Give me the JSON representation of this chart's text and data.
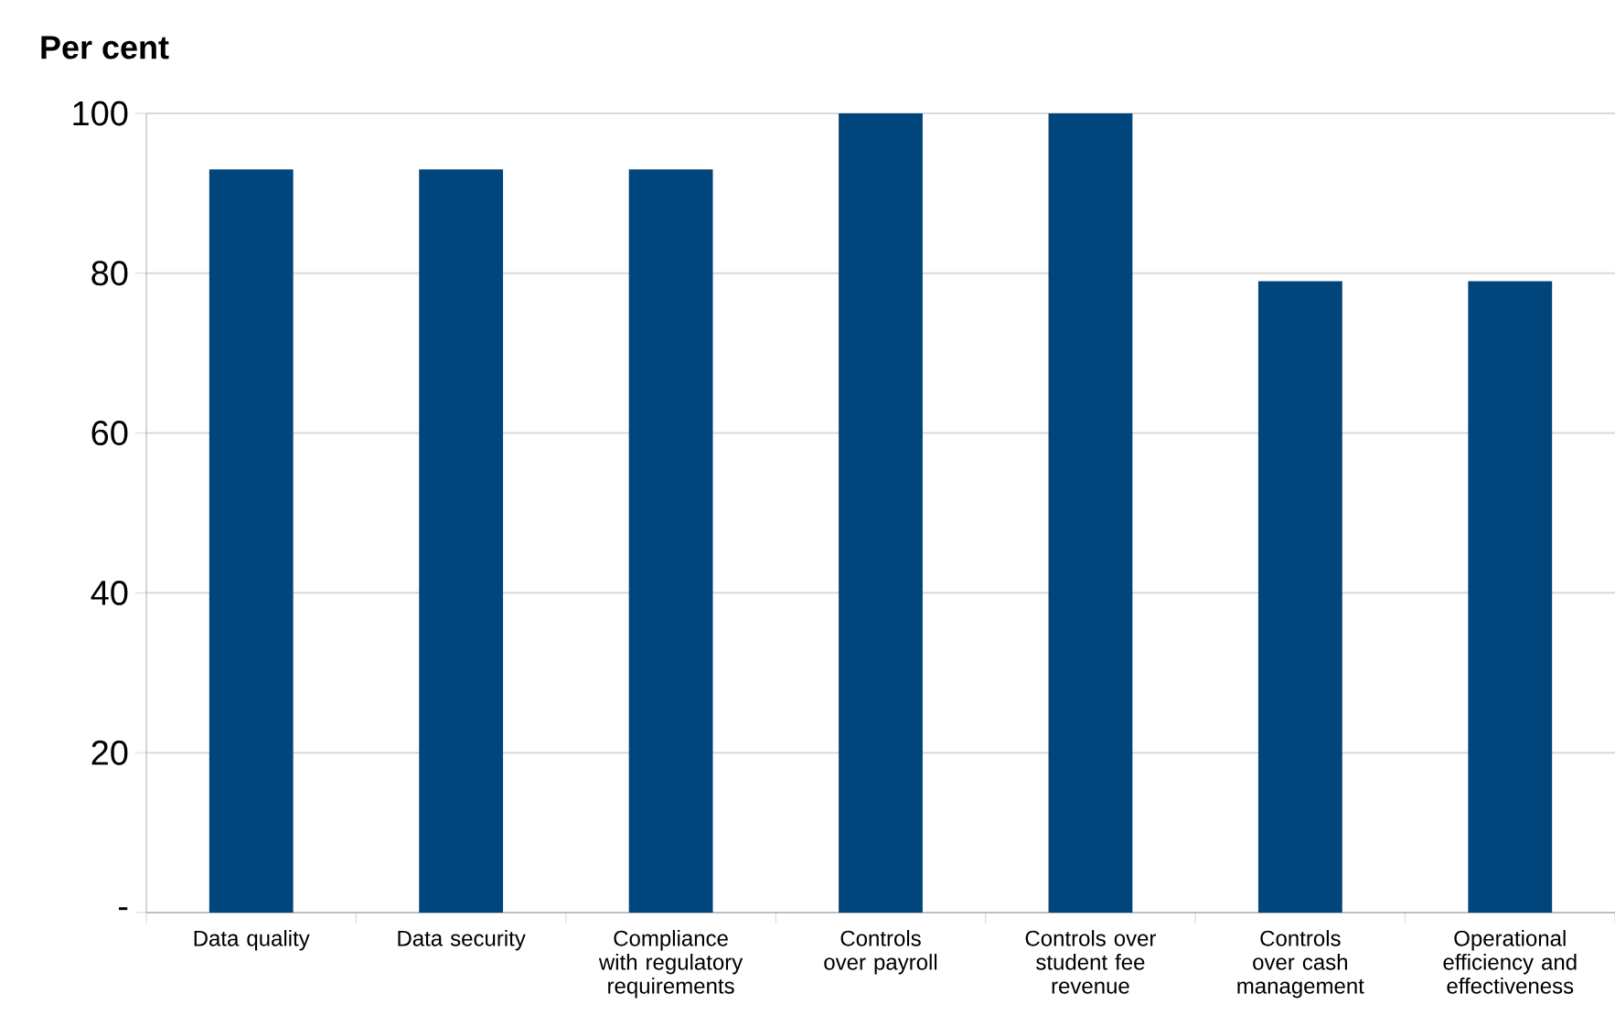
{
  "chart_data": {
    "type": "bar",
    "ylabel": "Per cent",
    "categories": [
      "Data quality",
      "Data security",
      "Compliance with regulatory requirements",
      "Controls over payroll",
      "Controls over student fee revenue",
      "Controls over cash management",
      "Operational efficiency and effectiveness"
    ],
    "values": [
      93,
      93,
      93,
      100,
      100,
      79,
      79
    ],
    "color": "#00457c",
    "ylim": [
      0,
      100
    ],
    "yticks": [
      {
        "value": 0,
        "label": "-"
      },
      20,
      40,
      60,
      80,
      100
    ],
    "grid": "y"
  }
}
